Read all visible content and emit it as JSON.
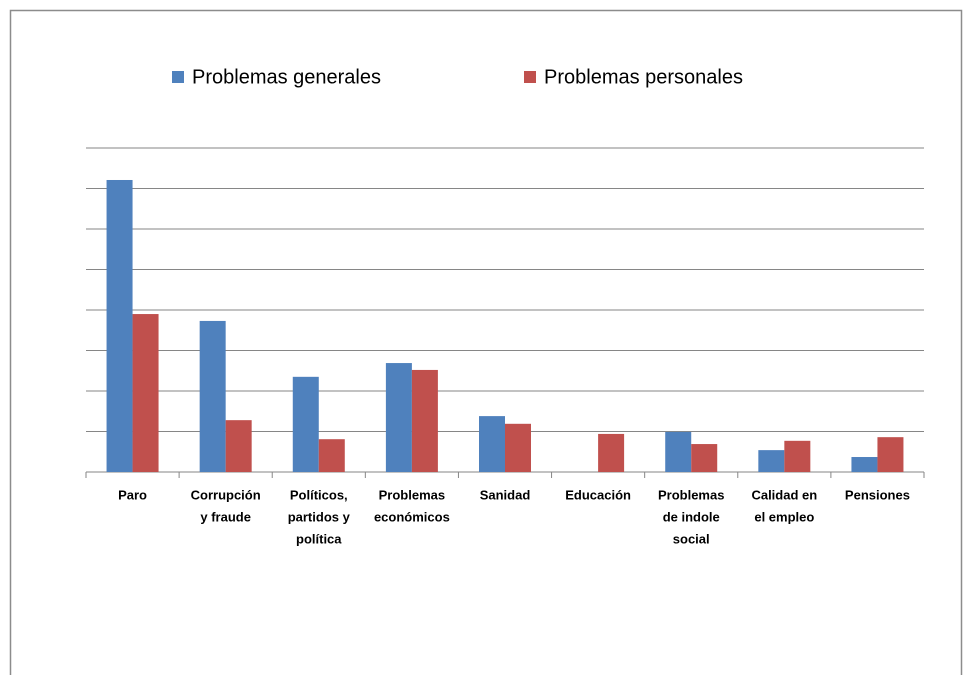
{
  "chart_data": {
    "type": "bar",
    "categories": [
      [
        "Paro"
      ],
      [
        "Corrupción",
        "y fraude"
      ],
      [
        "Políticos,",
        "partidos y",
        "política"
      ],
      [
        "Problemas",
        "económicos"
      ],
      [
        "Sanidad"
      ],
      [
        "Educación"
      ],
      [
        "Problemas",
        "de indole",
        "social"
      ],
      [
        "Calidad en",
        "el empleo"
      ],
      [
        "Pensiones"
      ]
    ],
    "series": [
      {
        "name": "Problemas generales",
        "color": "#4f81bd",
        "values": [
          7.21,
          3.73,
          2.35,
          2.69,
          1.38,
          0,
          0.99,
          0.54,
          0.37
        ]
      },
      {
        "name": "Problemas personales",
        "color": "#c0504d",
        "values": [
          3.9,
          1.28,
          0.81,
          2.52,
          1.19,
          0.94,
          0.69,
          0.77,
          0.86
        ]
      }
    ],
    "ylim": [
      0,
      8
    ],
    "yticks": [
      0,
      1,
      2,
      3,
      4,
      5,
      6,
      7,
      8
    ],
    "grid": true,
    "legend": "top"
  }
}
